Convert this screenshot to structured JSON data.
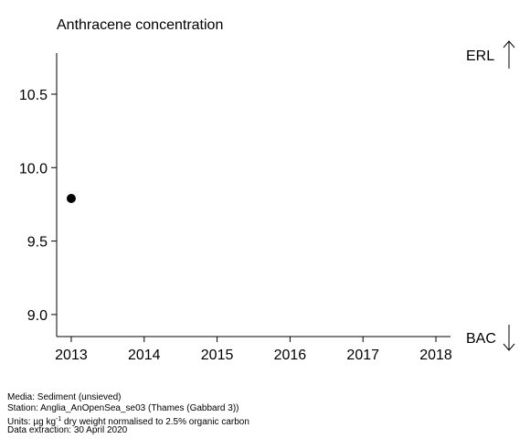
{
  "chart_data": {
    "type": "scatter",
    "title": "Anthracene concentration",
    "xlabel": "",
    "ylabel": "",
    "x_ticks": [
      2013,
      2014,
      2015,
      2016,
      2017,
      2018
    ],
    "y_ticks": [
      9.0,
      9.5,
      10.0,
      10.5
    ],
    "x_tick_labels": [
      "2013",
      "2014",
      "2015",
      "2016",
      "2017",
      "2018"
    ],
    "y_tick_labels": [
      "9.0",
      "9.5",
      "10.0",
      "10.5"
    ],
    "xlim": [
      2012.8,
      2018.2
    ],
    "ylim": [
      8.85,
      10.78
    ],
    "points": [
      {
        "x": 2013,
        "y": 9.79
      }
    ],
    "grid": false,
    "reference_labels": {
      "top": "ERL",
      "bottom": "BAC"
    }
  },
  "footnotes": {
    "media": "Media: Sediment (unsieved)",
    "station": "Station: Anglia_AnOpenSea_se03 (Thames (Gabbard 3))",
    "units_prefix": "Units:  µg kg",
    "units_sup": "-1",
    "units_suffix": " dry weight normalised to 2.5% organic carbon",
    "extraction": "Data extraction: 30 April 2020"
  }
}
